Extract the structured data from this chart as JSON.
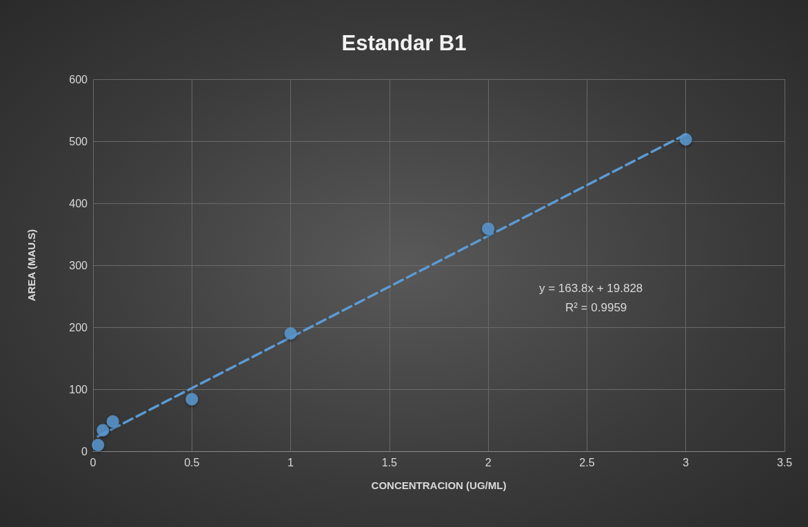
{
  "chart_data": {
    "type": "scatter",
    "title": "Estandar B1",
    "xlabel": "CONCENTRACION (UG/ML)",
    "ylabel": "AREA (MAU.S)",
    "x": [
      0.025,
      0.05,
      0.1,
      0.5,
      1,
      2,
      3
    ],
    "series": [
      {
        "color": "#5b9bd5",
        "values": [
          10,
          34,
          48,
          84,
          190,
          359,
          503
        ]
      },
      {
        "type": "line",
        "color": "#5b9bd5",
        "x": [
          0.025,
          3
        ],
        "values": [
          24,
          511
        ],
        "line_style": "dashed",
        "marker": "none"
      }
    ],
    "xlim": [
      0,
      3.5
    ],
    "xticks": [
      0,
      0.5,
      1,
      1.5,
      2,
      2.5,
      3,
      3.5
    ],
    "ylim": [
      0,
      600
    ],
    "yticks": [
      0,
      100,
      200,
      300,
      400,
      500,
      600
    ],
    "grid": true,
    "marker": "circle",
    "annotations": [
      "y = 163.8x + 19.828",
      "R² = 0.9959"
    ]
  }
}
